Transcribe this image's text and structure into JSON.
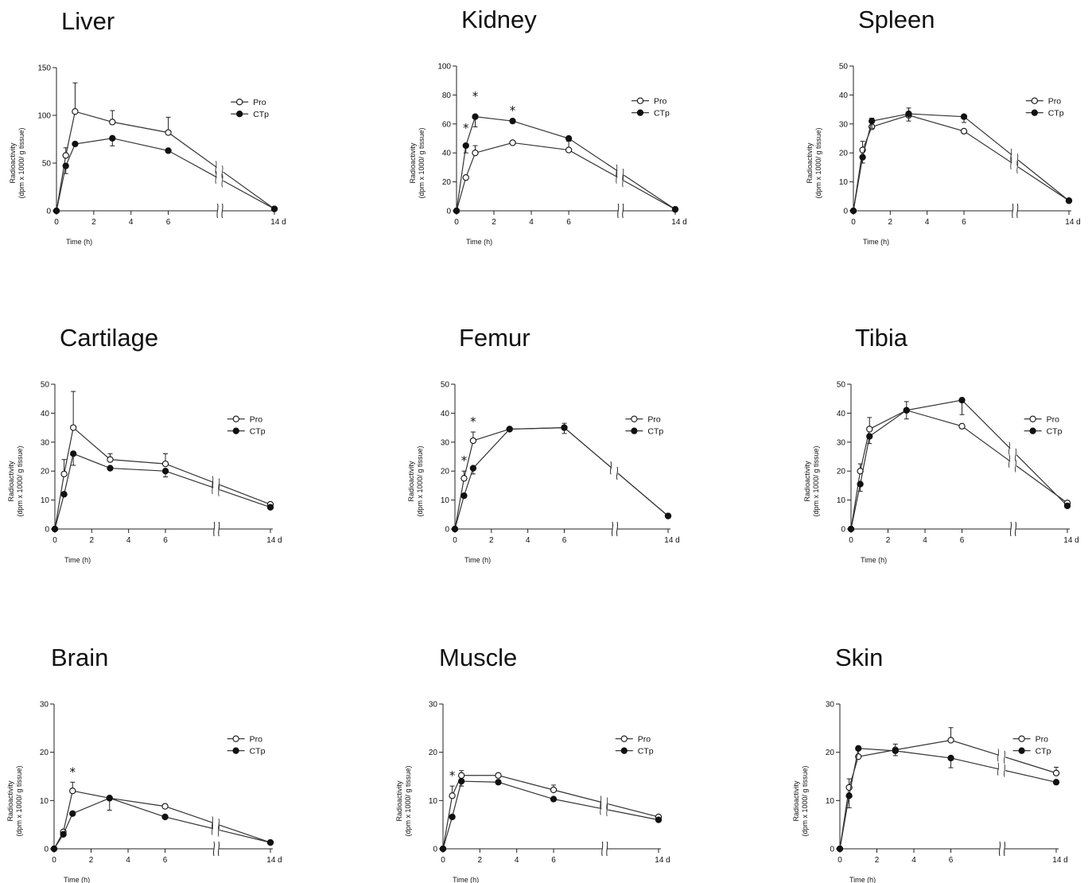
{
  "chart_data": [
    {
      "type": "line",
      "title": "Liver",
      "xlabel": "Time (h)",
      "ylabel": [
        "Radioactivity",
        "(dpm x 1000/ g tissue)"
      ],
      "ylim": [
        0,
        150
      ],
      "yticks": [
        "0",
        "50",
        "100",
        "150"
      ],
      "xticks": [
        "0",
        "2",
        "4",
        "6",
        "14 d"
      ],
      "x": [
        "0",
        "0.5",
        "1",
        "3",
        "6",
        "14 d"
      ],
      "series": [
        {
          "name": "Pro",
          "marker": "open",
          "values": [
            0,
            58,
            104,
            93,
            82,
            2
          ],
          "errors": [
            0,
            8,
            30,
            12,
            16,
            0
          ]
        },
        {
          "name": "CTp",
          "marker": "filled",
          "values": [
            0,
            47,
            70,
            76,
            63,
            2
          ],
          "errors": [
            0,
            8,
            0,
            8,
            0,
            0
          ]
        }
      ],
      "significance_x": []
    },
    {
      "type": "line",
      "title": "Kidney",
      "xlabel": "Time (h)",
      "ylabel": [
        "Radioactivity",
        "(dpm x 1000/ g tissue)"
      ],
      "ylim": [
        0,
        100
      ],
      "yticks": [
        "0",
        "20",
        "40",
        "60",
        "80",
        "100"
      ],
      "xticks": [
        "0",
        "2",
        "4",
        "6",
        "14 d"
      ],
      "x": [
        "0",
        "0.5",
        "1",
        "3",
        "6",
        "14 d"
      ],
      "series": [
        {
          "name": "Pro",
          "marker": "open",
          "values": [
            0,
            23,
            40,
            47,
            42,
            1
          ],
          "errors": [
            0,
            0,
            5,
            0,
            6,
            0
          ]
        },
        {
          "name": "CTp",
          "marker": "filled",
          "values": [
            0,
            45,
            65,
            62,
            50,
            1
          ],
          "errors": [
            0,
            5,
            7,
            0,
            0,
            0
          ]
        }
      ],
      "significance_x": [
        "0.5",
        "1",
        "3"
      ]
    },
    {
      "type": "line",
      "title": "Spleen",
      "xlabel": "Time (h)",
      "ylabel": [
        "Radioactivity",
        "(dpm x 1000/ g tissue)"
      ],
      "ylim": [
        0,
        50
      ],
      "yticks": [
        "0",
        "10",
        "20",
        "30",
        "40",
        "50"
      ],
      "xticks": [
        "0",
        "2",
        "4",
        "6",
        "14 d"
      ],
      "x": [
        "0",
        "0.5",
        "1",
        "3",
        "6",
        "14 d"
      ],
      "series": [
        {
          "name": "Pro",
          "marker": "open",
          "values": [
            0,
            21,
            29,
            33,
            27.5,
            3.5
          ],
          "errors": [
            0,
            3,
            3,
            2.5,
            0,
            0
          ]
        },
        {
          "name": "CTp",
          "marker": "filled",
          "values": [
            0,
            18.5,
            31,
            33.5,
            32.5,
            3.5
          ],
          "errors": [
            0,
            2,
            2.5,
            2.5,
            2,
            0
          ]
        }
      ],
      "significance_x": []
    },
    {
      "type": "line",
      "title": "Cartilage",
      "xlabel": "Time (h)",
      "ylabel": [
        "Radioactivity",
        "(dpm x 1000/ g tissue)"
      ],
      "ylim": [
        0,
        50
      ],
      "yticks": [
        "0",
        "10",
        "20",
        "30",
        "40",
        "50"
      ],
      "xticks": [
        "0",
        "2",
        "4",
        "6",
        "14 d"
      ],
      "x": [
        "0",
        "0.5",
        "1",
        "3",
        "6",
        "14 d"
      ],
      "series": [
        {
          "name": "Pro",
          "marker": "open",
          "values": [
            0,
            19,
            35,
            24,
            22.5,
            8.5
          ],
          "errors": [
            0,
            5,
            12.5,
            2,
            3.5,
            0
          ]
        },
        {
          "name": "CTp",
          "marker": "filled",
          "values": [
            0,
            12,
            26,
            21,
            20,
            7.5
          ],
          "errors": [
            0,
            0,
            4,
            0,
            2,
            0
          ]
        }
      ],
      "significance_x": []
    },
    {
      "type": "line",
      "title": "Femur",
      "xlabel": "Time (h)",
      "ylabel": [
        "Radioactivity",
        "(dpm x 1000/ g tissue)"
      ],
      "ylim": [
        0,
        50
      ],
      "yticks": [
        "0",
        "10",
        "20",
        "30",
        "40",
        "50"
      ],
      "xticks": [
        "0",
        "2",
        "4",
        "6",
        "14 d"
      ],
      "x": [
        "0",
        "0.5",
        "1",
        "3",
        "6",
        "14 d"
      ],
      "series": [
        {
          "name": "Pro",
          "marker": "open",
          "values": [
            0,
            17.5,
            30.5,
            34.5,
            35,
            4.5
          ],
          "errors": [
            0,
            2.5,
            3,
            0,
            1.5,
            0
          ]
        },
        {
          "name": "CTp",
          "marker": "filled",
          "values": [
            0,
            11.5,
            21,
            34.5,
            35,
            4.5
          ],
          "errors": [
            0,
            0,
            2,
            0,
            2,
            0
          ]
        }
      ],
      "significance_x": [
        "0.5",
        "1"
      ]
    },
    {
      "type": "line",
      "title": "Tibia",
      "xlabel": "Time (h)",
      "ylabel": [
        "Radioactivity",
        "(dpm x 1000/ g tissue)"
      ],
      "ylim": [
        0,
        50
      ],
      "yticks": [
        "0",
        "10",
        "20",
        "30",
        "40",
        "50"
      ],
      "xticks": [
        "0",
        "2",
        "4",
        "6",
        "14 d"
      ],
      "x": [
        "0",
        "0.5",
        "1",
        "3",
        "6",
        "14 d"
      ],
      "series": [
        {
          "name": "Pro",
          "marker": "open",
          "values": [
            0,
            20,
            34.5,
            41,
            35.5,
            9
          ],
          "errors": [
            0,
            2.5,
            4,
            3,
            0,
            0
          ]
        },
        {
          "name": "CTp",
          "marker": "filled",
          "values": [
            0,
            15.5,
            32,
            41,
            44.5,
            8
          ],
          "errors": [
            0,
            2.5,
            2.5,
            3,
            5,
            0
          ]
        }
      ],
      "significance_x": []
    },
    {
      "type": "line",
      "title": "Brain",
      "xlabel": "Time (h)",
      "ylabel": [
        "Radioactivity",
        "(dpm x 1000/ g tissue)"
      ],
      "ylim": [
        0,
        30
      ],
      "yticks": [
        "0",
        "10",
        "20",
        "30"
      ],
      "xticks": [
        "0",
        "2",
        "4",
        "6",
        "14 d"
      ],
      "x": [
        "0",
        "0.5",
        "1",
        "3",
        "6",
        "14 d"
      ],
      "series": [
        {
          "name": "Pro",
          "marker": "open",
          "values": [
            0,
            3.5,
            12,
            10.5,
            8.8,
            1.3
          ],
          "errors": [
            0,
            0,
            1.8,
            0,
            0,
            0
          ]
        },
        {
          "name": "CTp",
          "marker": "filled",
          "values": [
            0,
            3,
            7.3,
            10.5,
            6.6,
            1.3
          ],
          "errors": [
            0,
            0,
            0,
            2.5,
            0,
            0
          ]
        }
      ],
      "significance_x": [
        "1"
      ]
    },
    {
      "type": "line",
      "title": "Muscle",
      "xlabel": "Time (h)",
      "ylabel": [
        "Radioactivity",
        "(dpm x 1000/ g tissue)"
      ],
      "ylim": [
        0,
        30
      ],
      "yticks": [
        "0",
        "10",
        "20",
        "30"
      ],
      "xticks": [
        "0",
        "2",
        "4",
        "6",
        "14 d"
      ],
      "x": [
        "0",
        "0.5",
        "1",
        "3",
        "6",
        "14 d"
      ],
      "series": [
        {
          "name": "Pro",
          "marker": "open",
          "values": [
            0,
            11,
            15.2,
            15.2,
            12.2,
            6.6
          ],
          "errors": [
            0,
            2,
            1,
            0,
            1,
            0
          ]
        },
        {
          "name": "CTp",
          "marker": "filled",
          "values": [
            0,
            6.6,
            14,
            13.8,
            10.3,
            6
          ],
          "errors": [
            0,
            0,
            1,
            0,
            0,
            0
          ]
        }
      ],
      "significance_x": [
        "0.5"
      ]
    },
    {
      "type": "line",
      "title": "Skin",
      "xlabel": "Time (h)",
      "ylabel": [
        "Radioactivity",
        "(dpm x 1000/ g tissue)"
      ],
      "ylim": [
        0,
        30
      ],
      "yticks": [
        "0",
        "10",
        "20",
        "30"
      ],
      "xticks": [
        "0",
        "2",
        "4",
        "6",
        "14 d"
      ],
      "x": [
        "0",
        "0.5",
        "1",
        "3",
        "6",
        "14 d"
      ],
      "series": [
        {
          "name": "Pro",
          "marker": "open",
          "values": [
            0,
            12.7,
            19.1,
            20.5,
            22.5,
            15.7
          ],
          "errors": [
            0,
            1.8,
            1.5,
            1.2,
            2.6,
            1.2
          ]
        },
        {
          "name": "CTp",
          "marker": "filled",
          "values": [
            0,
            11,
            20.8,
            20.3,
            18.8,
            13.8
          ],
          "errors": [
            0,
            2.5,
            0,
            1,
            2,
            0
          ]
        }
      ],
      "significance_x": []
    }
  ]
}
